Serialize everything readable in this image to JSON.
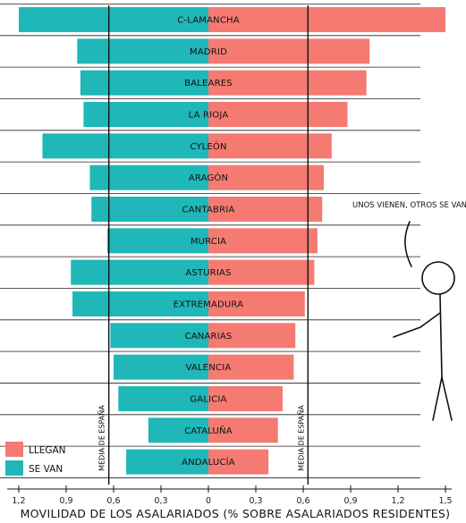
{
  "chart_data": {
    "type": "bar",
    "orientation": "horizontal-diverging",
    "categories": [
      "C-LAMANCHA",
      "MADRID",
      "BALEARES",
      "LA RIOJA",
      "CYLEÓN",
      "ARAGÓN",
      "CANTABRIA",
      "MURCIA",
      "ASTURIAS",
      "EXTREMADURA",
      "CANARIAS",
      "VALENCIA",
      "GALICIA",
      "CATALUÑA",
      "ANDALUCÍA"
    ],
    "series": [
      {
        "name": "LLEGAN",
        "color": "#f47a72",
        "values": [
          1.5,
          1.02,
          1.0,
          0.88,
          0.78,
          0.73,
          0.72,
          0.69,
          0.67,
          0.61,
          0.55,
          0.54,
          0.47,
          0.44,
          0.38
        ]
      },
      {
        "name": "SE VAN",
        "color": "#1fb7b8",
        "values": [
          1.2,
          0.83,
          0.81,
          0.79,
          1.05,
          0.75,
          0.74,
          0.64,
          0.87,
          0.86,
          0.62,
          0.6,
          0.57,
          0.38,
          0.52
        ]
      }
    ],
    "xlabel": "MOVILIDAD DE LOS ASALARIADOS (% SOBRE ASALARIADOS RESIDENTES)",
    "x_ticks": [
      "1,2",
      "0,9",
      "0,6",
      "0,3",
      "0",
      "0,3",
      "0,6",
      "0,9",
      "1,2",
      "1,5"
    ],
    "xlim": [
      -1.25,
      1.5
    ],
    "reference_lines": [
      {
        "label": "MEDIA DE ESPAÑA",
        "value": -0.63
      },
      {
        "label": "MEDIA DE ESPAÑA",
        "value": 0.63
      }
    ],
    "annotation": "UNOS VIENEN, OTROS SE VAN",
    "legend_position": "bottom-left",
    "grid": false
  }
}
